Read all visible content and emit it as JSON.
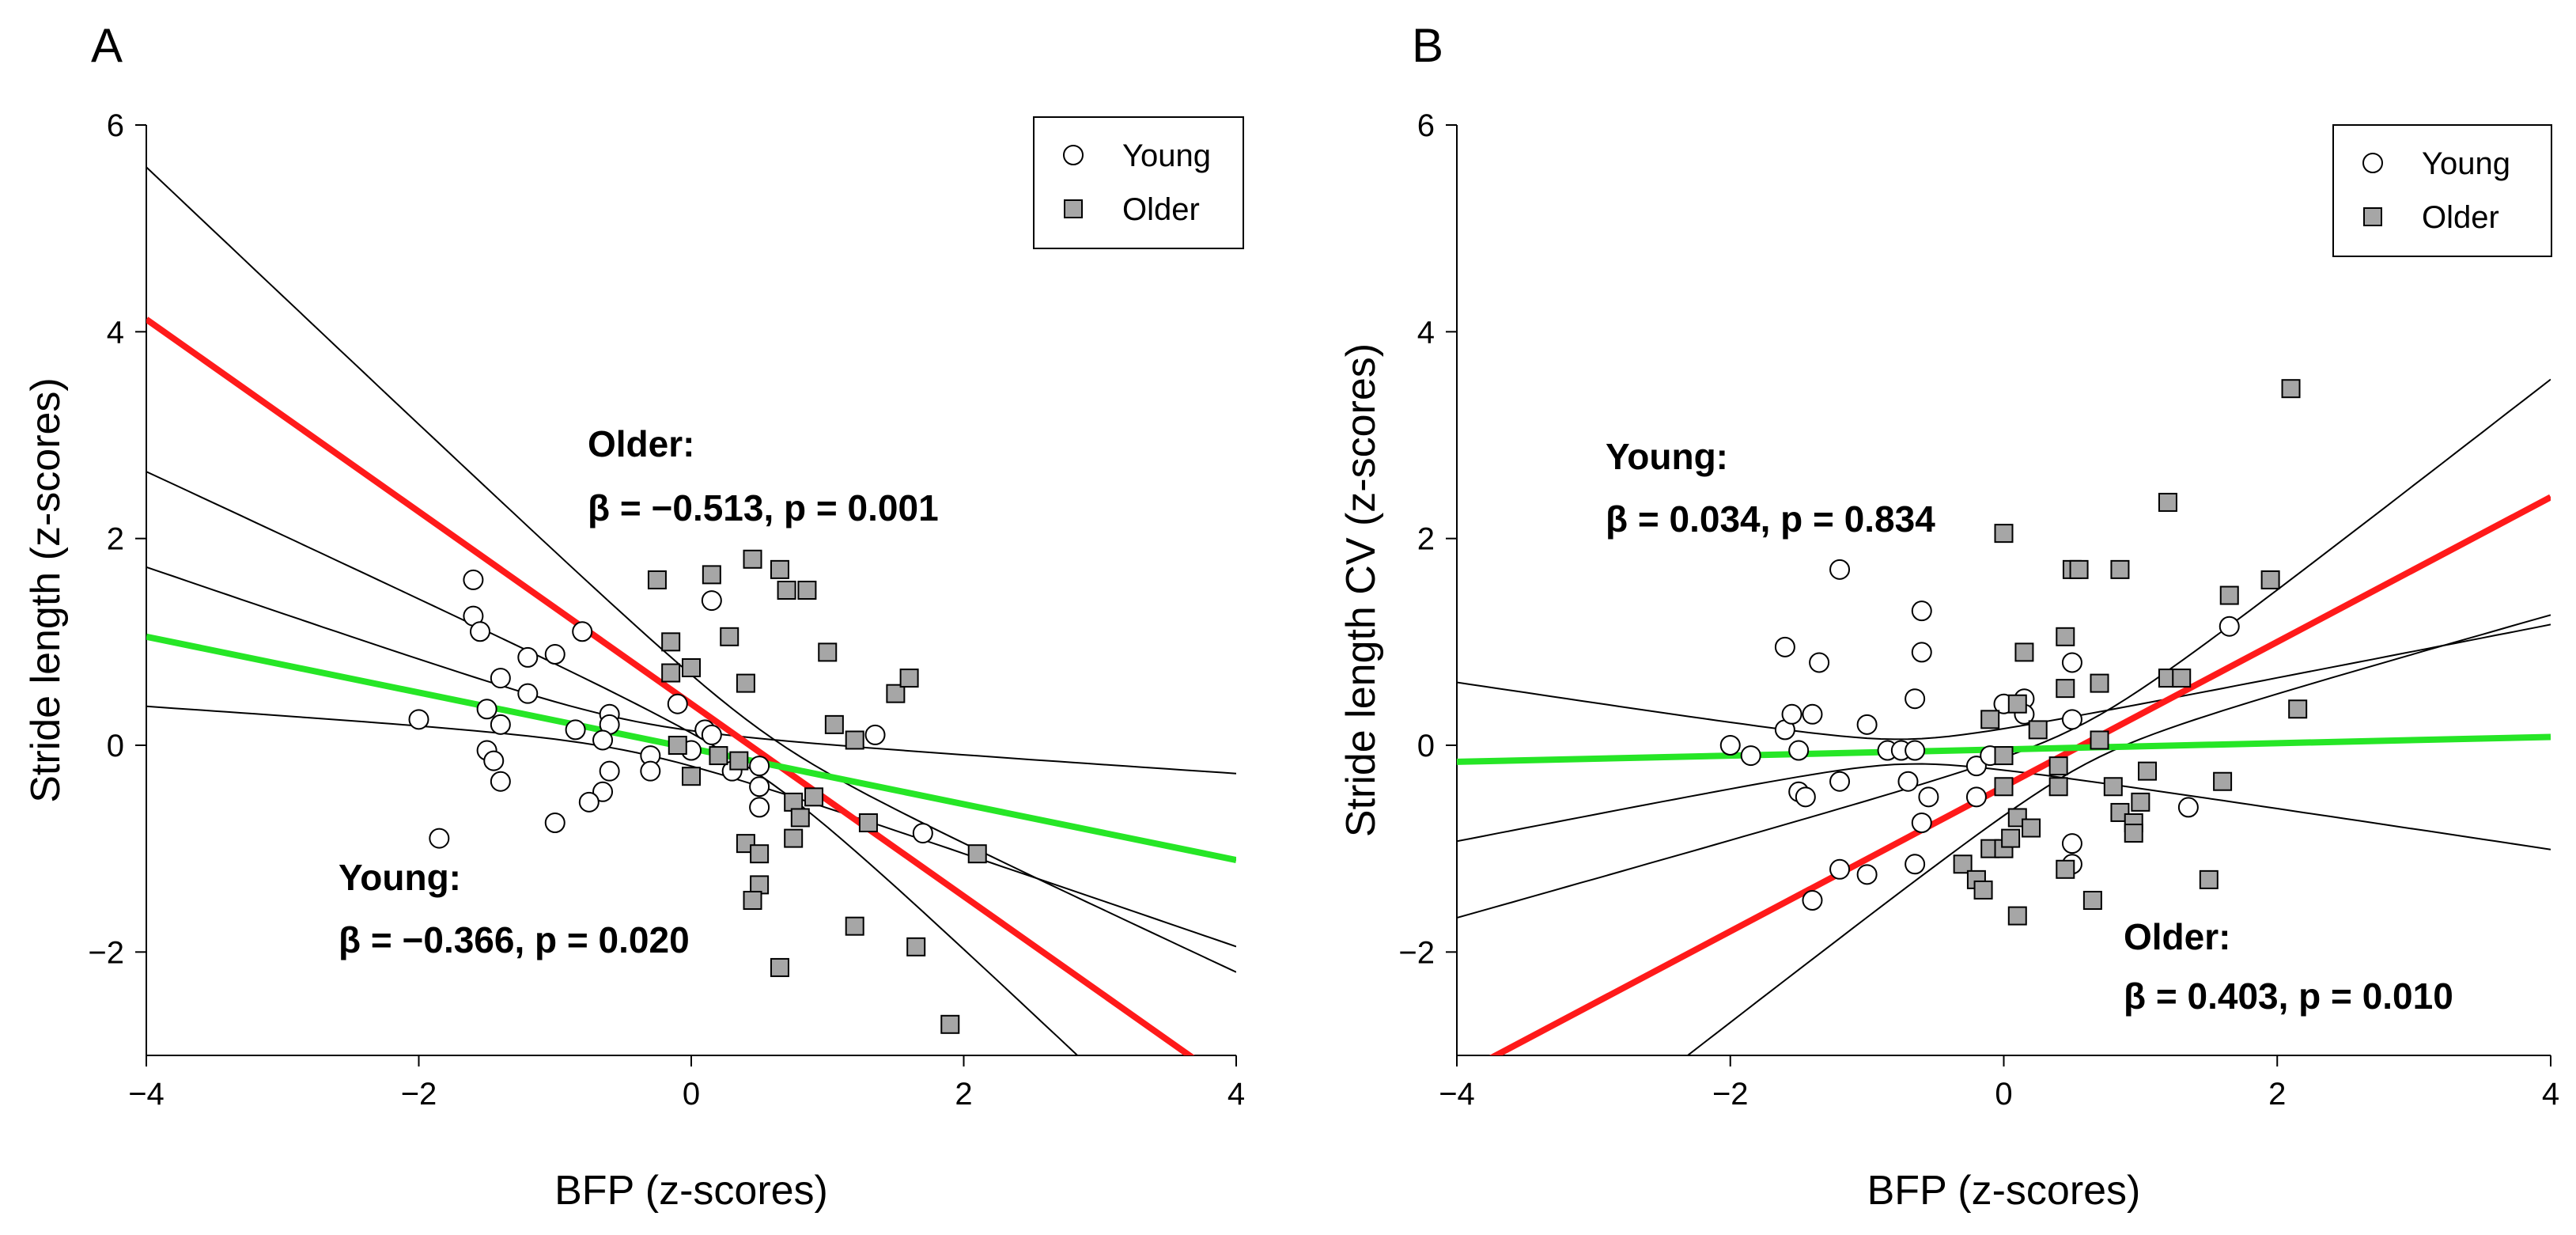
{
  "chart_data": [
    {
      "type": "scatter",
      "panel_label": "A",
      "xlabel": "BFP (z-scores)",
      "ylabel": "Stride length (z-scores)",
      "xlim": [
        -4,
        4
      ],
      "ylim": [
        -3,
        6
      ],
      "xticks": [
        -4,
        -2,
        0,
        2,
        4
      ],
      "yticks": [
        -2,
        0,
        2,
        4,
        6
      ],
      "xtick_labels": [
        "−4",
        "−2",
        "0",
        "2",
        "4"
      ],
      "ytick_labels": [
        "−2",
        "0",
        "2",
        "4",
        "6"
      ],
      "legend": [
        {
          "label": "Young",
          "marker": "circle",
          "fill": "#ffffff"
        },
        {
          "label": "Older",
          "marker": "square",
          "fill": "#a6a6a6"
        }
      ],
      "annotations": [
        {
          "id": "older",
          "lines": [
            "Older:",
            "β  = −0.513, p = 0.001"
          ]
        },
        {
          "id": "young",
          "lines": [
            "Young:",
            "β  = −0.366, p = 0.020"
          ]
        }
      ],
      "fit_lines": [
        {
          "name": "Older fit",
          "color": "#ff1a1a",
          "width": 8,
          "slope": -0.93,
          "intercept": 0.4
        },
        {
          "name": "Young fit",
          "color": "#26e626",
          "width": 8,
          "slope": -0.27,
          "intercept": -0.03
        }
      ],
      "confidence_bands": [
        {
          "name": "Older 95% CI",
          "slope": -0.93,
          "intercept": 0.4,
          "se_intercept": 0.22,
          "se_slope": 0.32,
          "xmean": 0.55
        },
        {
          "name": "Young 95% CI",
          "slope": -0.27,
          "intercept": -0.03,
          "se_intercept": 0.15,
          "se_slope": 0.185,
          "xmean": -0.45
        }
      ],
      "series": [
        {
          "name": "Young",
          "marker": "circle",
          "points": [
            [
              -1.6,
              1.6
            ],
            [
              -1.6,
              1.25
            ],
            [
              -1.55,
              1.1
            ],
            [
              -1.4,
              0.65
            ],
            [
              -1.2,
              0.5
            ],
            [
              -1.2,
              0.85
            ],
            [
              -1.0,
              0.88
            ],
            [
              -0.8,
              1.1
            ],
            [
              -0.85,
              0.15
            ],
            [
              -0.6,
              0.3
            ],
            [
              -0.6,
              0.2
            ],
            [
              -0.65,
              0.05
            ],
            [
              -0.6,
              -0.25
            ],
            [
              -0.65,
              -0.45
            ],
            [
              -0.75,
              -0.55
            ],
            [
              -1.0,
              -0.75
            ],
            [
              -1.5,
              0.35
            ],
            [
              -1.4,
              0.2
            ],
            [
              -1.4,
              -0.35
            ],
            [
              -1.5,
              -0.05
            ],
            [
              -1.45,
              -0.15
            ],
            [
              -1.85,
              -0.9
            ],
            [
              -2.0,
              0.25
            ],
            [
              -0.3,
              -0.1
            ],
            [
              -0.3,
              -0.25
            ],
            [
              -0.1,
              0.4
            ],
            [
              0.0,
              -0.05
            ],
            [
              0.1,
              0.15
            ],
            [
              0.15,
              0.1
            ],
            [
              0.15,
              1.4
            ],
            [
              0.3,
              -0.25
            ],
            [
              0.5,
              -0.2
            ],
            [
              0.5,
              -0.4
            ],
            [
              0.5,
              -0.6
            ],
            [
              1.35,
              0.1
            ],
            [
              1.7,
              -0.85
            ]
          ]
        },
        {
          "name": "Older",
          "marker": "square",
          "points": [
            [
              -0.25,
              1.6
            ],
            [
              -0.15,
              1.0
            ],
            [
              -0.15,
              0.7
            ],
            [
              0.0,
              0.75
            ],
            [
              0.15,
              1.65
            ],
            [
              0.28,
              1.05
            ],
            [
              0.45,
              1.8
            ],
            [
              0.65,
              1.7
            ],
            [
              0.7,
              1.5
            ],
            [
              0.85,
              1.5
            ],
            [
              1.0,
              0.9
            ],
            [
              0.4,
              0.6
            ],
            [
              -0.1,
              0.0
            ],
            [
              0.0,
              -0.3
            ],
            [
              0.2,
              -0.1
            ],
            [
              0.35,
              -0.15
            ],
            [
              0.4,
              -0.95
            ],
            [
              0.5,
              -1.05
            ],
            [
              0.5,
              -1.35
            ],
            [
              0.45,
              -1.5
            ],
            [
              0.65,
              -2.15
            ],
            [
              0.75,
              -0.55
            ],
            [
              0.75,
              -0.9
            ],
            [
              0.8,
              -0.7
            ],
            [
              1.05,
              0.2
            ],
            [
              1.2,
              0.05
            ],
            [
              1.3,
              -0.75
            ],
            [
              1.2,
              -1.75
            ],
            [
              1.5,
              0.5
            ],
            [
              1.6,
              0.65
            ],
            [
              1.65,
              -1.95
            ],
            [
              1.9,
              -2.7
            ],
            [
              2.1,
              -1.05
            ],
            [
              0.9,
              -0.5
            ]
          ]
        }
      ]
    },
    {
      "type": "scatter",
      "panel_label": "B",
      "xlabel": "BFP (z-scores)",
      "ylabel": "Stride length CV (z-scores)",
      "xlim": [
        -4,
        4
      ],
      "ylim": [
        -3,
        6
      ],
      "xticks": [
        -4,
        -2,
        0,
        2,
        4
      ],
      "yticks": [
        -2,
        0,
        2,
        4,
        6
      ],
      "xtick_labels": [
        "−4",
        "−2",
        "0",
        "2",
        "4"
      ],
      "ytick_labels": [
        "−2",
        "0",
        "2",
        "4",
        "6"
      ],
      "legend": [
        {
          "label": "Young",
          "marker": "circle",
          "fill": "#ffffff"
        },
        {
          "label": "Older",
          "marker": "square",
          "fill": "#a6a6a6"
        }
      ],
      "annotations": [
        {
          "id": "young",
          "lines": [
            "Young:",
            "β  = 0.034, p = 0.834"
          ]
        },
        {
          "id": "older",
          "lines": [
            "Older:",
            "β  = 0.403, p = 0.010"
          ]
        }
      ],
      "fit_lines": [
        {
          "name": "Older fit",
          "color": "#ff1a1a",
          "width": 8,
          "slope": 0.7,
          "intercept": -0.4
        },
        {
          "name": "Young fit",
          "color": "#26e626",
          "width": 8,
          "slope": 0.03,
          "intercept": -0.04
        }
      ],
      "confidence_bands": [
        {
          "name": "Older 95% CI",
          "slope": 0.7,
          "intercept": -0.4,
          "se_intercept": 0.2,
          "se_slope": 0.33,
          "xmean": 0.6
        },
        {
          "name": "Young 95% CI",
          "slope": 0.03,
          "intercept": -0.04,
          "se_intercept": 0.12,
          "se_slope": 0.23,
          "xmean": -0.7
        }
      ],
      "series": [
        {
          "name": "Young",
          "marker": "circle",
          "points": [
            [
              -2.0,
              0.0
            ],
            [
              -1.85,
              -0.1
            ],
            [
              -1.6,
              0.95
            ],
            [
              -1.6,
              0.15
            ],
            [
              -1.55,
              0.3
            ],
            [
              -1.5,
              -0.05
            ],
            [
              -1.5,
              -0.45
            ],
            [
              -1.45,
              -0.5
            ],
            [
              -1.4,
              0.3
            ],
            [
              -1.4,
              -1.5
            ],
            [
              -1.35,
              0.8
            ],
            [
              -1.2,
              1.7
            ],
            [
              -1.2,
              -0.35
            ],
            [
              -1.2,
              -1.2
            ],
            [
              -1.0,
              0.2
            ],
            [
              -1.0,
              -1.25
            ],
            [
              -0.85,
              -0.05
            ],
            [
              -0.75,
              -0.05
            ],
            [
              -0.7,
              -0.35
            ],
            [
              -0.65,
              -0.05
            ],
            [
              -0.65,
              0.45
            ],
            [
              -0.6,
              0.9
            ],
            [
              -0.6,
              1.3
            ],
            [
              -0.6,
              -0.75
            ],
            [
              -0.65,
              -1.15
            ],
            [
              -0.55,
              -0.5
            ],
            [
              -0.2,
              -0.2
            ],
            [
              -0.2,
              -0.5
            ],
            [
              -0.1,
              -0.1
            ],
            [
              0.0,
              0.4
            ],
            [
              0.15,
              0.45
            ],
            [
              0.15,
              0.3
            ],
            [
              0.5,
              0.8
            ],
            [
              0.5,
              -0.95
            ],
            [
              0.5,
              -1.15
            ],
            [
              0.5,
              0.25
            ],
            [
              1.35,
              -0.6
            ],
            [
              1.65,
              1.15
            ]
          ]
        },
        {
          "name": "Older",
          "marker": "square",
          "points": [
            [
              0.0,
              2.05
            ],
            [
              0.5,
              1.7
            ],
            [
              0.55,
              1.7
            ],
            [
              0.85,
              1.7
            ],
            [
              1.2,
              2.35
            ],
            [
              1.65,
              1.45
            ],
            [
              1.95,
              1.6
            ],
            [
              2.1,
              3.45
            ],
            [
              0.15,
              0.9
            ],
            [
              0.45,
              1.05
            ],
            [
              0.45,
              0.55
            ],
            [
              0.7,
              0.6
            ],
            [
              1.2,
              0.65
            ],
            [
              1.3,
              0.65
            ],
            [
              2.15,
              0.35
            ],
            [
              0.1,
              0.4
            ],
            [
              0.25,
              0.15
            ],
            [
              0.4,
              -0.2
            ],
            [
              -0.1,
              0.25
            ],
            [
              0.0,
              -0.1
            ],
            [
              0.0,
              -0.4
            ],
            [
              0.1,
              -0.7
            ],
            [
              0.2,
              -0.8
            ],
            [
              0.4,
              -0.4
            ],
            [
              0.7,
              0.05
            ],
            [
              0.8,
              -0.4
            ],
            [
              0.85,
              -0.65
            ],
            [
              0.95,
              -0.75
            ],
            [
              0.95,
              -0.85
            ],
            [
              1.0,
              -0.55
            ],
            [
              1.05,
              -0.25
            ],
            [
              1.6,
              -0.35
            ],
            [
              -0.3,
              -1.15
            ],
            [
              -0.2,
              -1.3
            ],
            [
              -0.15,
              -1.4
            ],
            [
              -0.1,
              -1.0
            ],
            [
              0.0,
              -1.0
            ],
            [
              0.05,
              -0.9
            ],
            [
              0.1,
              -1.65
            ],
            [
              0.45,
              -1.2
            ],
            [
              0.65,
              -1.5
            ],
            [
              1.5,
              -1.3
            ]
          ]
        }
      ]
    }
  ]
}
